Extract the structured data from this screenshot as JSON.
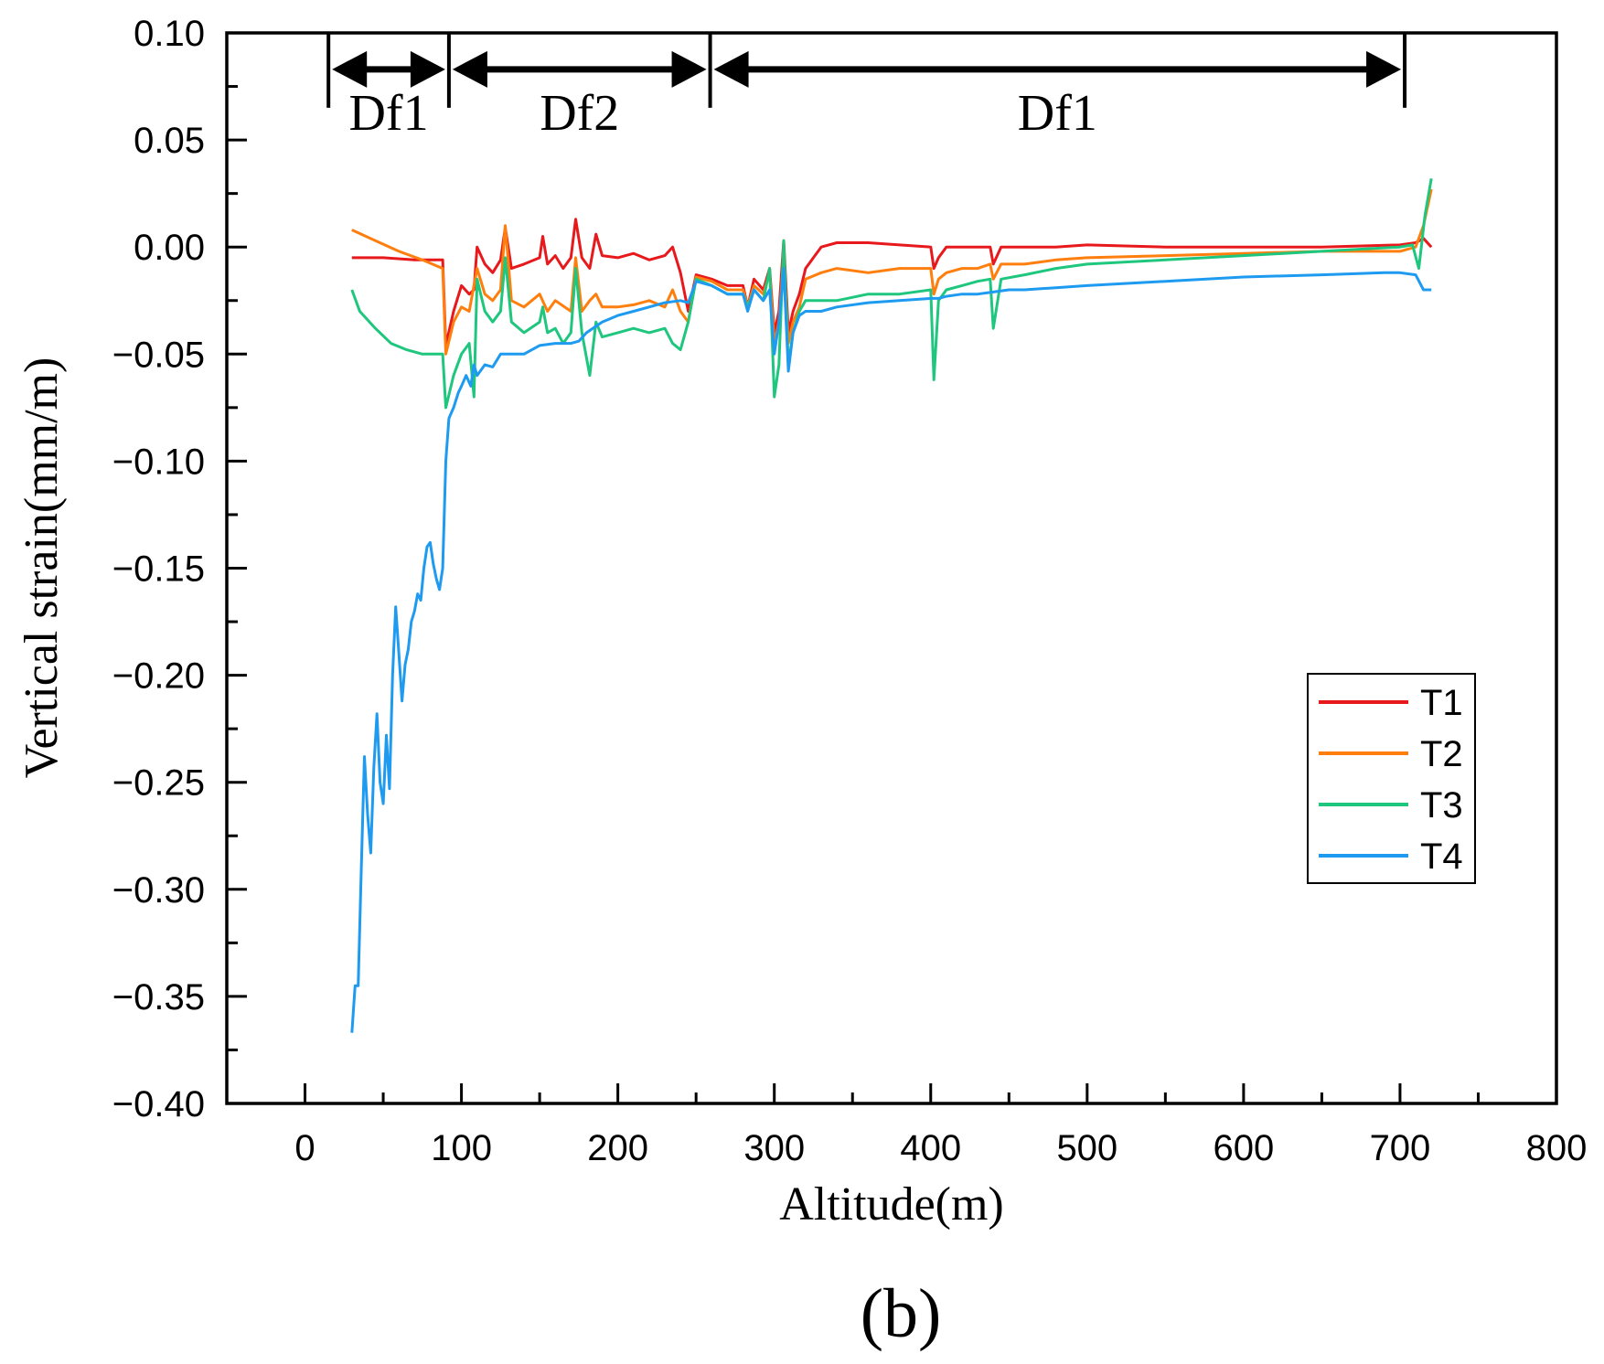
{
  "chart_data": {
    "type": "line",
    "title": "",
    "xlabel": "Altitude(m)",
    "ylabel": "Vertical strain(mm/m)",
    "panel_label": "(b)",
    "xlim": [
      -50,
      800
    ],
    "ylim": [
      -0.4,
      0.1
    ],
    "xticks": [
      0,
      100,
      200,
      300,
      400,
      500,
      600,
      700,
      800
    ],
    "xtick_labels": [
      "0",
      "100",
      "200",
      "300",
      "400",
      "500",
      "600",
      "700",
      "800"
    ],
    "yticks": [
      0.1,
      0.05,
      0.0,
      -0.05,
      -0.1,
      -0.15,
      -0.2,
      -0.25,
      -0.3,
      -0.35,
      -0.4
    ],
    "ytick_labels": [
      "0.10",
      "0.05",
      "0.00",
      "−0.05",
      "−0.10",
      "−0.15",
      "−0.20",
      "−0.25",
      "−0.30",
      "−0.35",
      "−0.40"
    ],
    "grid": false,
    "legend_position": "lower-right",
    "regions": [
      {
        "label": "Df1",
        "x_start": 15,
        "x_end": 92,
        "y": 0.083
      },
      {
        "label": "Df2",
        "x_start": 92,
        "x_end": 259,
        "y": 0.083
      },
      {
        "label": "Df1",
        "x_start": 259,
        "x_end": 703,
        "y": 0.083
      }
    ],
    "series": [
      {
        "name": "T1",
        "color": "#e8191c",
        "x": [
          30,
          50,
          70,
          88,
          90,
          95,
          100,
          105,
          108,
          110,
          115,
          120,
          125,
          128,
          132,
          140,
          150,
          152,
          155,
          160,
          165,
          170,
          173,
          177,
          182,
          186,
          190,
          200,
          210,
          220,
          230,
          235,
          240,
          245,
          250,
          260,
          270,
          280,
          283,
          287,
          293,
          297,
          300,
          303,
          306,
          309,
          312,
          316,
          320,
          330,
          340,
          350,
          360,
          380,
          400,
          402,
          405,
          410,
          420,
          430,
          438,
          440,
          445,
          460,
          480,
          500,
          550,
          600,
          650,
          700,
          710,
          715,
          720
        ],
        "y": [
          -0.005,
          -0.005,
          -0.006,
          -0.006,
          -0.046,
          -0.03,
          -0.018,
          -0.022,
          -0.02,
          0.0,
          -0.008,
          -0.012,
          -0.006,
          0.009,
          -0.01,
          -0.008,
          -0.005,
          0.005,
          -0.008,
          -0.004,
          -0.01,
          -0.005,
          0.013,
          -0.005,
          -0.01,
          0.006,
          -0.004,
          -0.005,
          -0.003,
          -0.006,
          -0.004,
          0.0,
          -0.012,
          -0.03,
          -0.013,
          -0.015,
          -0.018,
          -0.018,
          -0.028,
          -0.015,
          -0.02,
          -0.01,
          -0.04,
          -0.03,
          0.003,
          -0.04,
          -0.03,
          -0.022,
          -0.01,
          0.0,
          0.002,
          0.002,
          0.002,
          0.001,
          0.0,
          -0.01,
          -0.005,
          0.0,
          0.0,
          0.0,
          0.0,
          -0.008,
          0.0,
          0.0,
          0.0,
          0.001,
          0.0,
          0.0,
          0.0,
          0.001,
          0.002,
          0.004,
          0.0
        ]
      },
      {
        "name": "T2",
        "color": "#ff7f0e",
        "x": [
          30,
          45,
          60,
          75,
          88,
          90,
          95,
          100,
          105,
          110,
          115,
          120,
          125,
          128,
          132,
          140,
          150,
          155,
          160,
          170,
          173,
          177,
          182,
          186,
          190,
          200,
          210,
          220,
          230,
          235,
          240,
          245,
          250,
          260,
          270,
          280,
          283,
          287,
          293,
          297,
          300,
          303,
          306,
          309,
          312,
          316,
          320,
          330,
          340,
          360,
          380,
          400,
          402,
          405,
          410,
          420,
          430,
          438,
          440,
          445,
          460,
          480,
          500,
          550,
          600,
          650,
          700,
          710,
          715,
          720
        ],
        "y": [
          0.008,
          0.003,
          -0.002,
          -0.006,
          -0.01,
          -0.05,
          -0.035,
          -0.028,
          -0.03,
          -0.01,
          -0.022,
          -0.025,
          -0.02,
          0.01,
          -0.025,
          -0.028,
          -0.022,
          -0.03,
          -0.025,
          -0.03,
          -0.005,
          -0.03,
          -0.025,
          -0.022,
          -0.028,
          -0.028,
          -0.027,
          -0.025,
          -0.028,
          -0.02,
          -0.03,
          -0.035,
          -0.014,
          -0.016,
          -0.02,
          -0.02,
          -0.028,
          -0.018,
          -0.022,
          -0.012,
          -0.045,
          -0.035,
          -0.005,
          -0.045,
          -0.035,
          -0.028,
          -0.015,
          -0.012,
          -0.01,
          -0.012,
          -0.01,
          -0.01,
          -0.022,
          -0.015,
          -0.012,
          -0.01,
          -0.01,
          -0.008,
          -0.015,
          -0.008,
          -0.008,
          -0.006,
          -0.005,
          -0.004,
          -0.003,
          -0.002,
          -0.002,
          0.0,
          0.01,
          0.027
        ]
      },
      {
        "name": "T3",
        "color": "#1fc77e",
        "x": [
          30,
          35,
          45,
          55,
          65,
          75,
          85,
          88,
          90,
          95,
          100,
          105,
          108,
          110,
          115,
          120,
          125,
          128,
          132,
          140,
          150,
          152,
          155,
          160,
          165,
          170,
          173,
          177,
          182,
          186,
          190,
          200,
          210,
          220,
          230,
          235,
          240,
          245,
          250,
          260,
          270,
          280,
          283,
          287,
          293,
          297,
          300,
          303,
          306,
          309,
          312,
          316,
          320,
          330,
          340,
          360,
          380,
          400,
          402,
          405,
          410,
          420,
          430,
          438,
          440,
          445,
          460,
          480,
          500,
          550,
          600,
          650,
          700,
          708,
          712,
          716,
          720
        ],
        "y": [
          -0.02,
          -0.03,
          -0.038,
          -0.045,
          -0.048,
          -0.05,
          -0.05,
          -0.05,
          -0.075,
          -0.06,
          -0.05,
          -0.045,
          -0.07,
          -0.015,
          -0.03,
          -0.035,
          -0.03,
          -0.005,
          -0.035,
          -0.04,
          -0.035,
          -0.028,
          -0.04,
          -0.038,
          -0.045,
          -0.04,
          -0.01,
          -0.04,
          -0.06,
          -0.035,
          -0.042,
          -0.04,
          -0.038,
          -0.04,
          -0.038,
          -0.045,
          -0.048,
          -0.035,
          -0.015,
          -0.018,
          -0.022,
          -0.022,
          -0.028,
          -0.02,
          -0.025,
          -0.01,
          -0.07,
          -0.055,
          0.003,
          -0.055,
          -0.04,
          -0.03,
          -0.025,
          -0.025,
          -0.025,
          -0.022,
          -0.022,
          -0.02,
          -0.062,
          -0.025,
          -0.02,
          -0.018,
          -0.016,
          -0.015,
          -0.038,
          -0.015,
          -0.013,
          -0.01,
          -0.008,
          -0.006,
          -0.004,
          -0.002,
          0.0,
          0.001,
          -0.01,
          0.015,
          0.032
        ]
      },
      {
        "name": "T4",
        "color": "#1e9bf0",
        "x": [
          30,
          32,
          34,
          36,
          38,
          40,
          42,
          44,
          46,
          48,
          50,
          52,
          54,
          56,
          58,
          60,
          62,
          64,
          66,
          68,
          70,
          72,
          74,
          76,
          78,
          80,
          82,
          84,
          86,
          88,
          90,
          92,
          95,
          98,
          100,
          103,
          106,
          108,
          110,
          115,
          120,
          125,
          130,
          140,
          150,
          160,
          170,
          175,
          180,
          190,
          200,
          210,
          220,
          230,
          240,
          245,
          250,
          260,
          270,
          280,
          283,
          287,
          293,
          297,
          300,
          303,
          306,
          309,
          312,
          316,
          320,
          330,
          340,
          360,
          380,
          400,
          405,
          410,
          420,
          430,
          440,
          450,
          460,
          480,
          500,
          550,
          600,
          650,
          690,
          700,
          710,
          715,
          720
        ],
        "y": [
          -0.367,
          -0.345,
          -0.345,
          -0.29,
          -0.238,
          -0.265,
          -0.283,
          -0.243,
          -0.218,
          -0.25,
          -0.26,
          -0.228,
          -0.253,
          -0.2,
          -0.168,
          -0.19,
          -0.212,
          -0.195,
          -0.188,
          -0.175,
          -0.17,
          -0.162,
          -0.165,
          -0.15,
          -0.14,
          -0.138,
          -0.148,
          -0.155,
          -0.16,
          -0.15,
          -0.1,
          -0.08,
          -0.075,
          -0.068,
          -0.065,
          -0.06,
          -0.065,
          -0.055,
          -0.06,
          -0.055,
          -0.056,
          -0.05,
          -0.05,
          -0.05,
          -0.046,
          -0.045,
          -0.045,
          -0.044,
          -0.04,
          -0.035,
          -0.032,
          -0.03,
          -0.028,
          -0.026,
          -0.025,
          -0.026,
          -0.016,
          -0.018,
          -0.022,
          -0.022,
          -0.03,
          -0.02,
          -0.025,
          -0.02,
          -0.05,
          -0.035,
          -0.01,
          -0.058,
          -0.04,
          -0.032,
          -0.03,
          -0.03,
          -0.028,
          -0.026,
          -0.025,
          -0.024,
          -0.024,
          -0.023,
          -0.022,
          -0.022,
          -0.021,
          -0.02,
          -0.02,
          -0.019,
          -0.018,
          -0.016,
          -0.014,
          -0.013,
          -0.012,
          -0.012,
          -0.013,
          -0.02,
          -0.02
        ]
      }
    ]
  }
}
